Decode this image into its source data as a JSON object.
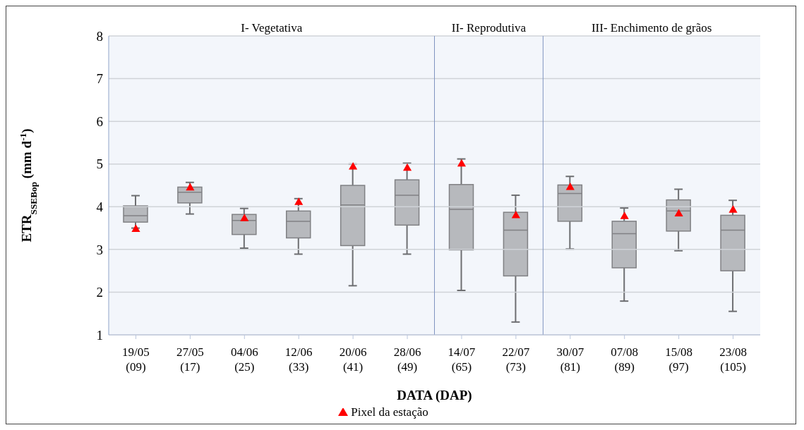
{
  "chart_data": {
    "type": "box",
    "xlabel": "DATA (DAP)",
    "ylabel": "ETR$_{SSEBop}$ (mm d$^{-1}$)",
    "categories": [
      "19/05 (09)",
      "27/05 (17)",
      "04/06 (25)",
      "12/06 (33)",
      "20/06 (41)",
      "28/06 (49)",
      "14/07 (65)",
      "22/07 (73)",
      "30/07 (81)",
      "07/08 (89)",
      "15/08 (97)",
      "23/08 (105)"
    ],
    "color": "#b7b9bd",
    "boxes": [
      {
        "low": 3.5,
        "q1": 3.64,
        "median": 3.79,
        "q3": 4.02,
        "high": 4.26
      },
      {
        "low": 3.83,
        "q1": 4.09,
        "median": 4.34,
        "q3": 4.46,
        "high": 4.57
      },
      {
        "low": 3.03,
        "q1": 3.35,
        "median": 3.68,
        "q3": 3.82,
        "high": 3.96
      },
      {
        "low": 2.89,
        "q1": 3.27,
        "median": 3.66,
        "q3": 3.9,
        "high": 4.19
      },
      {
        "low": 2.15,
        "q1": 3.09,
        "median": 4.04,
        "q3": 4.5,
        "high": 5.0
      },
      {
        "low": 2.89,
        "q1": 3.57,
        "median": 4.27,
        "q3": 4.63,
        "high": 5.02
      },
      {
        "low": 2.04,
        "q1": 2.99,
        "median": 3.94,
        "q3": 4.52,
        "high": 5.12
      },
      {
        "low": 1.3,
        "q1": 2.38,
        "median": 3.45,
        "q3": 3.87,
        "high": 4.27
      },
      {
        "low": 3.01,
        "q1": 3.66,
        "median": 4.31,
        "q3": 4.51,
        "high": 4.71
      },
      {
        "low": 1.79,
        "q1": 2.57,
        "median": 3.37,
        "q3": 3.66,
        "high": 3.97
      },
      {
        "low": 2.97,
        "q1": 3.43,
        "median": 3.9,
        "q3": 4.16,
        "high": 4.41
      },
      {
        "low": 1.55,
        "q1": 2.5,
        "median": 3.45,
        "q3": 3.8,
        "high": 4.15
      }
    ],
    "series": [
      {
        "name": "Pixel da estação",
        "type": "scatter",
        "color": "#ff0000",
        "marker": "triangle",
        "x": [
          "19/05 (09)",
          "27/05 (17)",
          "04/06 (25)",
          "12/06 (33)",
          "20/06 (41)",
          "28/06 (49)",
          "14/07 (65)",
          "22/07 (73)",
          "30/07 (81)",
          "07/08 (89)",
          "15/08 (97)",
          "23/08 (105)"
        ],
        "values": [
          3.47,
          4.44,
          3.72,
          4.1,
          4.93,
          4.9,
          5.0,
          3.79,
          4.45,
          3.77,
          3.83,
          3.92
        ]
      }
    ],
    "bands": [
      {
        "axis": "x",
        "from": "19/05 (09)",
        "to": "28/06 (49)",
        "label": "I- Vegetativa",
        "color": "#f3f6fb"
      },
      {
        "axis": "x",
        "from": "14/07 (65)",
        "to": "22/07 (73)",
        "label": "II- Reprodutiva",
        "color": "#f3f6fb"
      },
      {
        "axis": "x",
        "from": "30/07 (81)",
        "to": "23/08 (105)",
        "label": "III- Enchimento de grãos",
        "color": "#f3f6fb"
      }
    ],
    "ylim": [
      1,
      8
    ],
    "yticks": [
      1,
      2,
      3,
      4,
      5,
      6,
      7,
      8
    ],
    "grid": "y",
    "legend": "bottom"
  }
}
